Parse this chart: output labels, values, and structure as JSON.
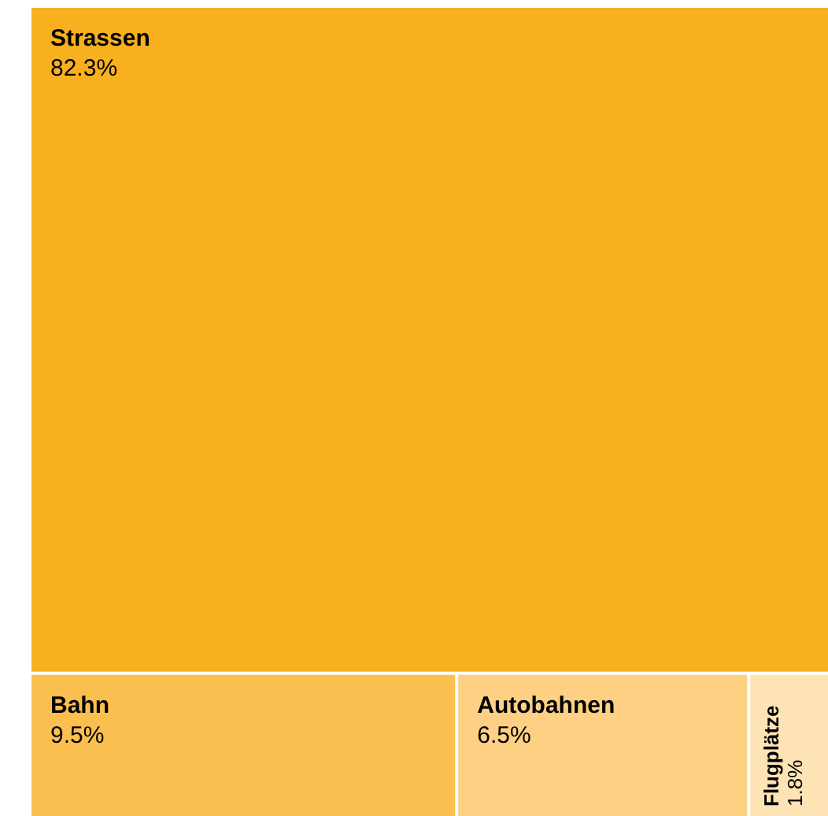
{
  "chart_data": {
    "type": "other",
    "categories": [
      "Strassen",
      "Bahn",
      "Autobahnen",
      "Flugplätze"
    ],
    "values": [
      82.3,
      9.5,
      6.5,
      1.8
    ],
    "value_labels": [
      "82.3%",
      "9.5%",
      "6.5%",
      "1.8%"
    ],
    "colors": [
      "#f8b01f",
      "#fbbf50",
      "#fdd084",
      "#fee3b4"
    ]
  }
}
